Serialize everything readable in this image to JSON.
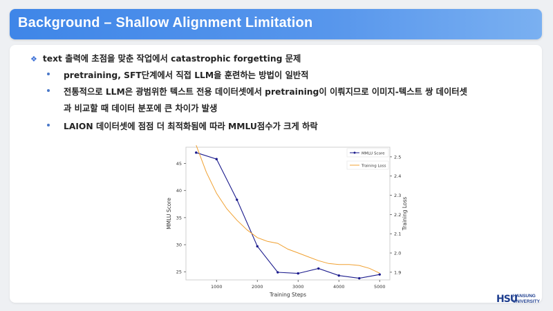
{
  "title": "Background – Shallow Alignment Limitation",
  "bullets": {
    "main": "text 출력에 초점을 맞춘 작업에서 catastrophic forgetting 문제",
    "sub": [
      "pretraining, SFT단계에서 직접 LLM을 훈련하는 방법이 일반적",
      "전통적으로 LLM은 광범위한 텍스트 전용 데이터셋에서 pretraining이 이뤄지므로 이미지-텍스트 쌍 데이터셋",
      "과 비교할 때 데이터 분포에 큰 차이가 발생",
      " LAION 데이터셋에 점점 더 최적화됨에 따라 MMLU점수가 크게 하락"
    ]
  },
  "logo": {
    "mark": "HSU",
    "line1": "HANSUNG",
    "line2": "UNIVERSITY"
  },
  "chart_data": {
    "type": "line",
    "xlabel": "Training Steps",
    "ylabel_left": "MMLU Score",
    "ylabel_right": "Training Loss",
    "x_ticks": [
      1000,
      2000,
      3000,
      4000,
      5000
    ],
    "y_ticks_left": [
      25,
      30,
      35,
      40,
      45
    ],
    "y_ticks_right": [
      1.9,
      2.0,
      2.1,
      2.2,
      2.3,
      2.4,
      2.5
    ],
    "xlim": [
      250,
      5250
    ],
    "ylim_left": [
      23.5,
      48
    ],
    "ylim_right": [
      1.86,
      2.55
    ],
    "legend_position": "top-right",
    "grid": false,
    "series": [
      {
        "name": "MMLU Score",
        "axis": "left",
        "color": "#1a1a8c",
        "marker": true,
        "x": [
          500,
          1000,
          1500,
          2000,
          2500,
          3000,
          3500,
          4000,
          4500,
          5000
        ],
        "y": [
          47.0,
          45.8,
          38.3,
          29.7,
          24.9,
          24.7,
          25.6,
          24.3,
          23.8,
          24.5
        ]
      },
      {
        "name": "Training Loss",
        "axis": "right",
        "color": "#f0a030",
        "marker": false,
        "x": [
          500,
          750,
          1000,
          1250,
          1500,
          1750,
          2000,
          2250,
          2500,
          2750,
          3000,
          3250,
          3500,
          3750,
          4000,
          4250,
          4500,
          4750,
          5000
        ],
        "y": [
          2.56,
          2.42,
          2.31,
          2.23,
          2.17,
          2.12,
          2.08,
          2.06,
          2.05,
          2.02,
          2.0,
          1.98,
          1.96,
          1.945,
          1.94,
          1.94,
          1.935,
          1.92,
          1.895
        ]
      }
    ]
  }
}
